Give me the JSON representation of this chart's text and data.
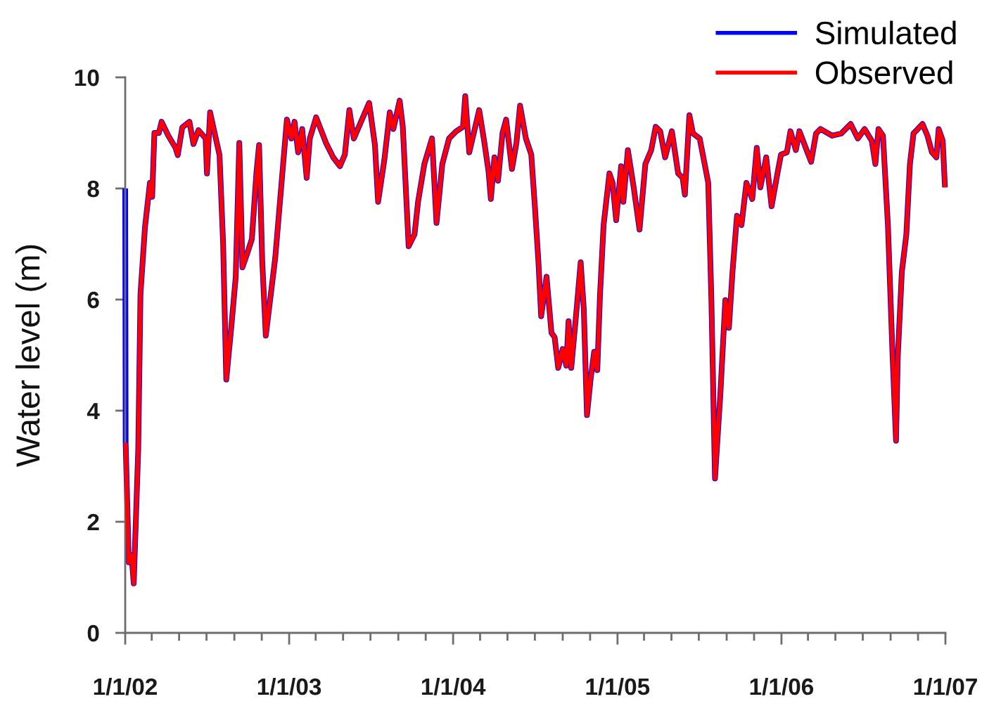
{
  "chart_data": {
    "type": "line",
    "ylabel": "Water level (m)",
    "legend": "top right",
    "line_style": "solid",
    "xlim": [
      "2002-01-01",
      "2007-01-01"
    ],
    "xticks": [
      {
        "value": "2002-01-01",
        "label": "1/1/02"
      },
      {
        "value": "2002-03-01",
        "label": null
      },
      {
        "value": "2002-05-01",
        "label": null
      },
      {
        "value": "2002-07-01",
        "label": null
      },
      {
        "value": "2002-09-01",
        "label": null
      },
      {
        "value": "2002-11-01",
        "label": null
      },
      {
        "value": "2003-01-01",
        "label": "1/1/03"
      },
      {
        "value": "2003-03-01",
        "label": null
      },
      {
        "value": "2003-05-01",
        "label": null
      },
      {
        "value": "2003-07-01",
        "label": null
      },
      {
        "value": "2003-09-01",
        "label": null
      },
      {
        "value": "2003-11-01",
        "label": null
      },
      {
        "value": "2004-01-01",
        "label": "1/1/04"
      },
      {
        "value": "2004-03-01",
        "label": null
      },
      {
        "value": "2004-05-01",
        "label": null
      },
      {
        "value": "2004-07-01",
        "label": null
      },
      {
        "value": "2004-09-01",
        "label": null
      },
      {
        "value": "2004-11-01",
        "label": null
      },
      {
        "value": "2005-01-01",
        "label": "1/1/05"
      },
      {
        "value": "2005-03-01",
        "label": null
      },
      {
        "value": "2005-05-01",
        "label": null
      },
      {
        "value": "2005-07-01",
        "label": null
      },
      {
        "value": "2005-09-01",
        "label": null
      },
      {
        "value": "2005-11-01",
        "label": null
      },
      {
        "value": "2006-01-01",
        "label": "1/1/06"
      },
      {
        "value": "2006-03-01",
        "label": null
      },
      {
        "value": "2006-05-01",
        "label": null
      },
      {
        "value": "2006-07-01",
        "label": null
      },
      {
        "value": "2006-09-01",
        "label": null
      },
      {
        "value": "2006-11-01",
        "label": null
      },
      {
        "value": "2007-01-01",
        "label": "1/1/07"
      }
    ],
    "ylim": [
      0,
      10
    ],
    "yticks": [
      0,
      2,
      4,
      6,
      8,
      10
    ],
    "x": [
      "2002-01-01",
      "2002-01-02",
      "2002-01-09",
      "2002-01-15",
      "2002-01-20",
      "2002-01-30",
      "2002-02-04",
      "2002-02-14",
      "2002-02-25",
      "2002-03-02",
      "2002-03-07",
      "2002-03-17",
      "2002-03-23",
      "2002-04-07",
      "2002-04-23",
      "2002-04-28",
      "2002-05-08",
      "2002-05-24",
      "2002-06-02",
      "2002-06-13",
      "2002-06-29",
      "2002-07-02",
      "2002-07-09",
      "2002-07-19",
      "2002-07-30",
      "2002-08-07",
      "2002-08-14",
      "2002-08-25",
      "2002-09-04",
      "2002-09-12",
      "2002-09-19",
      "2002-09-30",
      "2002-10-10",
      "2002-10-20",
      "2002-10-26",
      "2002-11-02",
      "2002-11-10",
      "2002-12-01",
      "2002-12-16",
      "2002-12-27",
      "2003-01-06",
      "2003-01-13",
      "2003-01-21",
      "2003-01-30",
      "2003-02-09",
      "2003-02-16",
      "2003-03-02",
      "2003-03-14",
      "2003-03-24",
      "2003-04-09",
      "2003-04-24",
      "2003-05-05",
      "2003-05-15",
      "2003-05-25",
      "2003-06-10",
      "2003-06-28",
      "2003-07-11",
      "2003-07-18",
      "2003-08-01",
      "2003-08-13",
      "2003-08-21",
      "2003-09-04",
      "2003-09-11",
      "2003-09-24",
      "2003-10-07",
      "2003-10-15",
      "2003-10-29",
      "2003-11-15",
      "2003-11-25",
      "2003-12-08",
      "2003-12-23",
      "2004-01-08",
      "2004-01-23",
      "2004-01-28",
      "2004-02-06",
      "2004-02-28",
      "2004-03-10",
      "2004-03-20",
      "2004-03-25",
      "2004-04-02",
      "2004-04-10",
      "2004-04-20",
      "2004-04-28",
      "2004-05-11",
      "2004-05-21",
      "2004-05-29",
      "2004-06-11",
      "2004-06-23",
      "2004-07-01",
      "2004-07-09",
      "2004-07-15",
      "2004-07-27",
      "2004-08-07",
      "2004-08-14",
      "2004-08-22",
      "2004-09-01",
      "2004-09-09",
      "2004-09-14",
      "2004-09-20",
      "2004-09-30",
      "2004-10-11",
      "2004-10-18",
      "2004-10-25",
      "2004-11-02",
      "2004-11-10",
      "2004-11-17",
      "2004-11-23",
      "2004-12-01",
      "2004-12-14",
      "2004-12-21",
      "2004-12-29",
      "2005-01-09",
      "2005-01-14",
      "2005-01-24",
      "2005-02-06",
      "2005-02-19",
      "2005-03-04",
      "2005-03-17",
      "2005-03-27",
      "2005-04-06",
      "2005-04-17",
      "2005-05-02",
      "2005-05-16",
      "2005-05-26",
      "2005-05-31",
      "2005-06-10",
      "2005-06-18",
      "2005-07-03",
      "2005-07-14",
      "2005-07-22",
      "2005-07-29",
      "2005-08-06",
      "2005-08-18",
      "2005-08-29",
      "2005-09-06",
      "2005-09-14",
      "2005-09-24",
      "2005-10-04",
      "2005-10-15",
      "2005-10-28",
      "2005-11-07",
      "2005-11-15",
      "2005-11-28",
      "2005-12-10",
      "2005-12-23",
      "2005-12-31",
      "2006-01-13",
      "2006-01-21",
      "2006-02-02",
      "2006-02-10",
      "2006-02-26",
      "2006-03-08",
      "2006-03-19",
      "2006-03-29",
      "2006-04-24",
      "2006-05-14",
      "2006-06-04",
      "2006-06-20",
      "2006-07-05",
      "2006-07-21",
      "2006-07-29",
      "2006-08-05",
      "2006-08-15",
      "2006-08-26",
      "2006-09-05",
      "2006-09-13",
      "2006-09-17",
      "2006-09-26",
      "2006-10-06",
      "2006-10-14",
      "2006-10-22",
      "2006-11-11",
      "2006-11-22",
      "2006-12-02",
      "2006-12-12",
      "2006-12-17",
      "2006-12-26",
      "2006-12-31"
    ],
    "series": [
      {
        "name": "Simulated",
        "color": "#0000ff",
        "values": [
          8.0,
          3.42,
          1.27,
          1.4,
          0.89,
          3.3,
          6.1,
          7.3,
          8.1,
          7.85,
          9.0,
          9.0,
          9.2,
          8.95,
          8.73,
          8.6,
          9.1,
          9.2,
          8.8,
          9.05,
          8.9,
          8.27,
          9.37,
          9.0,
          8.6,
          7.0,
          4.56,
          5.49,
          6.4,
          8.82,
          6.58,
          6.84,
          7.09,
          8.27,
          8.78,
          6.7,
          5.35,
          6.75,
          8.19,
          9.24,
          8.9,
          9.2,
          8.65,
          9.07,
          8.19,
          8.9,
          9.28,
          9.03,
          8.82,
          8.56,
          8.4,
          8.61,
          9.41,
          8.9,
          9.2,
          9.54,
          8.78,
          7.76,
          8.52,
          9.37,
          9.07,
          9.58,
          9.11,
          6.96,
          7.17,
          7.76,
          8.44,
          8.9,
          7.38,
          8.44,
          8.9,
          9.03,
          9.11,
          9.66,
          8.65,
          9.41,
          8.86,
          8.3,
          7.81,
          8.56,
          8.14,
          9.0,
          9.24,
          8.35,
          8.82,
          9.49,
          8.9,
          8.61,
          7.68,
          6.67,
          5.7,
          6.41,
          5.4,
          5.32,
          4.77,
          5.11,
          4.81,
          5.61,
          4.77,
          5.65,
          6.67,
          5.82,
          3.92,
          4.56,
          5.06,
          4.73,
          6.08,
          7.34,
          8.27,
          8.1,
          7.43,
          8.4,
          7.76,
          8.69,
          8.02,
          7.26,
          8.44,
          8.69,
          9.11,
          9.03,
          8.56,
          9.03,
          8.27,
          8.19,
          7.89,
          9.32,
          8.99,
          8.9,
          8.44,
          8.1,
          5.99,
          2.78,
          4.3,
          5.99,
          5.49,
          6.5,
          7.51,
          7.34,
          8.1,
          7.81,
          8.73,
          8.02,
          8.56,
          7.68,
          8.27,
          8.61,
          8.65,
          9.03,
          8.69,
          9.03,
          8.69,
          8.48,
          8.99,
          9.07,
          8.95,
          8.99,
          9.16,
          8.9,
          9.07,
          8.86,
          8.44,
          9.07,
          8.95,
          7.34,
          5.06,
          3.46,
          4.98,
          6.5,
          7.17,
          8.44,
          8.99,
          9.16,
          8.95,
          8.65,
          8.56,
          9.07,
          8.86,
          8.02
        ]
      },
      {
        "name": "Observed",
        "color": "#ff0000",
        "values": [
          null,
          3.42,
          1.27,
          1.4,
          0.89,
          3.3,
          6.1,
          7.3,
          8.1,
          7.85,
          9.0,
          9.0,
          9.2,
          8.95,
          8.73,
          8.6,
          9.1,
          9.2,
          8.8,
          9.05,
          8.9,
          8.27,
          9.37,
          9.0,
          8.6,
          7.0,
          4.56,
          5.49,
          6.4,
          8.82,
          6.58,
          6.84,
          7.09,
          8.27,
          8.78,
          6.7,
          5.35,
          6.75,
          8.19,
          9.24,
          8.9,
          9.2,
          8.65,
          9.07,
          8.19,
          8.9,
          9.28,
          9.03,
          8.82,
          8.56,
          8.4,
          8.61,
          9.41,
          8.9,
          9.2,
          9.54,
          8.78,
          7.76,
          8.52,
          9.37,
          9.07,
          9.58,
          9.11,
          6.96,
          7.17,
          7.76,
          8.44,
          8.9,
          7.38,
          8.44,
          8.9,
          9.03,
          9.11,
          9.66,
          8.65,
          9.41,
          8.86,
          8.3,
          7.81,
          8.56,
          8.14,
          9.0,
          9.24,
          8.35,
          8.82,
          9.49,
          8.9,
          8.61,
          7.68,
          6.67,
          5.7,
          6.41,
          5.4,
          5.32,
          4.77,
          5.11,
          4.81,
          5.61,
          4.77,
          5.65,
          6.67,
          5.82,
          3.92,
          4.56,
          5.06,
          4.73,
          6.08,
          7.34,
          8.27,
          8.1,
          7.43,
          8.4,
          7.76,
          8.69,
          8.02,
          7.26,
          8.44,
          8.69,
          9.11,
          9.03,
          8.56,
          9.03,
          8.27,
          8.19,
          7.89,
          9.32,
          8.99,
          8.9,
          8.44,
          8.1,
          5.99,
          2.78,
          4.3,
          5.99,
          5.49,
          6.5,
          7.51,
          7.34,
          8.1,
          7.81,
          8.73,
          8.02,
          8.56,
          7.68,
          8.27,
          8.61,
          8.65,
          9.03,
          8.69,
          9.03,
          8.69,
          8.48,
          8.99,
          9.07,
          8.95,
          8.99,
          9.16,
          8.9,
          9.07,
          8.86,
          8.44,
          9.07,
          8.95,
          7.34,
          5.06,
          3.46,
          4.98,
          6.5,
          7.17,
          8.44,
          8.99,
          9.16,
          8.95,
          8.65,
          8.56,
          9.07,
          8.86,
          8.02
        ]
      }
    ]
  }
}
